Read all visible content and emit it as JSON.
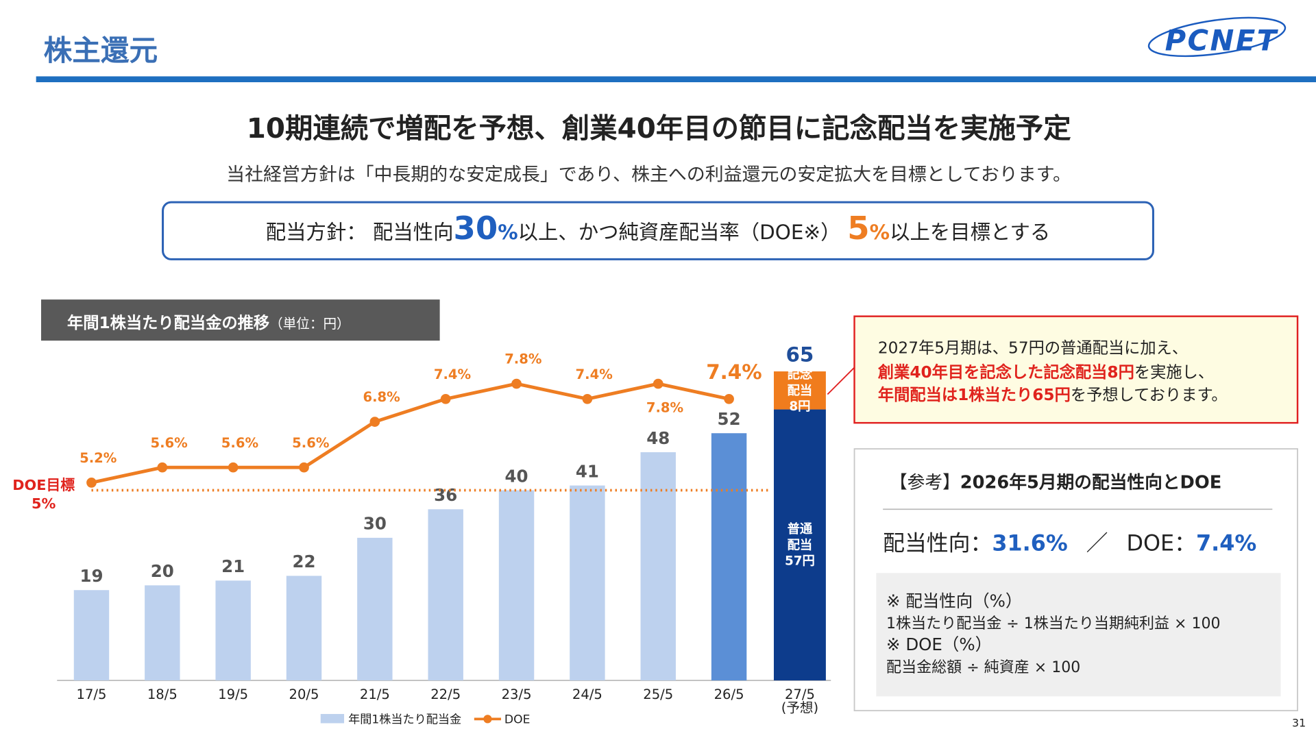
{
  "header": {
    "title": "株主還元",
    "logo": "PCNET",
    "page_number": "31"
  },
  "headline": "10期連続で増配を予想、創業40年目の節目に記念配当を実施予定",
  "subheadline": "当社経営方針は「中長期的な安定成長」であり、株主への利益還元の安定拡大を目標としております。",
  "policy": {
    "parts": [
      "配当方針：  配当性向",
      "30",
      "%",
      "以上、かつ純資産配当率（DOE※）",
      "5",
      "%",
      "以上を目標とする"
    ]
  },
  "chart_data": {
    "type": "bar",
    "title": "年間1株当たり配当金の推移",
    "subtitle": "（単位：円）",
    "categories": [
      "17/5",
      "18/5",
      "19/5",
      "20/5",
      "21/5",
      "22/5",
      "23/5",
      "24/5",
      "25/5",
      "26/5",
      "27/5"
    ],
    "forecast_note": "(予想)",
    "ylim": [
      0,
      72
    ],
    "y2lim": [
      0,
      9
    ],
    "series": [
      {
        "name": "年間1株当たり配当金",
        "color": "#bdd1ee",
        "highlight_color": "#5b8fd6",
        "highlight_index": 9,
        "values": [
          19,
          20,
          21,
          22,
          30,
          36,
          40,
          41,
          48,
          52,
          null
        ]
      },
      {
        "name": "DOE",
        "type": "line",
        "axis": "y2",
        "color": "#ee7d22",
        "values": [
          5.2,
          5.6,
          5.6,
          5.6,
          6.8,
          7.4,
          7.8,
          7.4,
          7.8,
          7.4,
          null
        ],
        "value_labels": [
          "5.2%",
          "5.6%",
          "5.6%",
          "5.6%",
          "6.8%",
          "7.4%",
          "7.8%",
          "7.4%",
          "7.8%",
          "7.4%",
          null
        ]
      }
    ],
    "forecast": {
      "segments": [
        {
          "label_lines": [
            "普通",
            "配当",
            "57円"
          ],
          "value": 57,
          "color": "#0d3c8c"
        },
        {
          "label_lines": [
            "記念",
            "配当",
            "8円"
          ],
          "value": 8,
          "color": "#f07c1d"
        }
      ],
      "total": 65,
      "total_color": "#1f4e9a"
    },
    "target": {
      "label_lines": [
        "DOE目標",
        "5%"
      ],
      "value": 5,
      "color": "#ee7d22",
      "label_color": "#e0231d"
    }
  },
  "callout": {
    "line1": "2027年5月期は、57円の普通配当に加え、",
    "line2": [
      "創業40年目を記念した記念配当8円",
      "を実施し、"
    ],
    "line3": [
      "年間配当は1株当たり65円",
      "を予想しております。"
    ]
  },
  "reference": {
    "title_prefix": "【参考】",
    "title": "2026年5月期の配当性向とDOE",
    "metrics": [
      "配当性向：",
      "31.6%",
      "／",
      "DOE：",
      "7.4%"
    ],
    "notes": [
      "※ 配当性向（%）",
      "1株当たり配当金 ÷ 1株当たり当期純利益 × 100",
      "※ DOE（%）",
      "配当金総額 ÷ 純資産 × 100"
    ]
  }
}
